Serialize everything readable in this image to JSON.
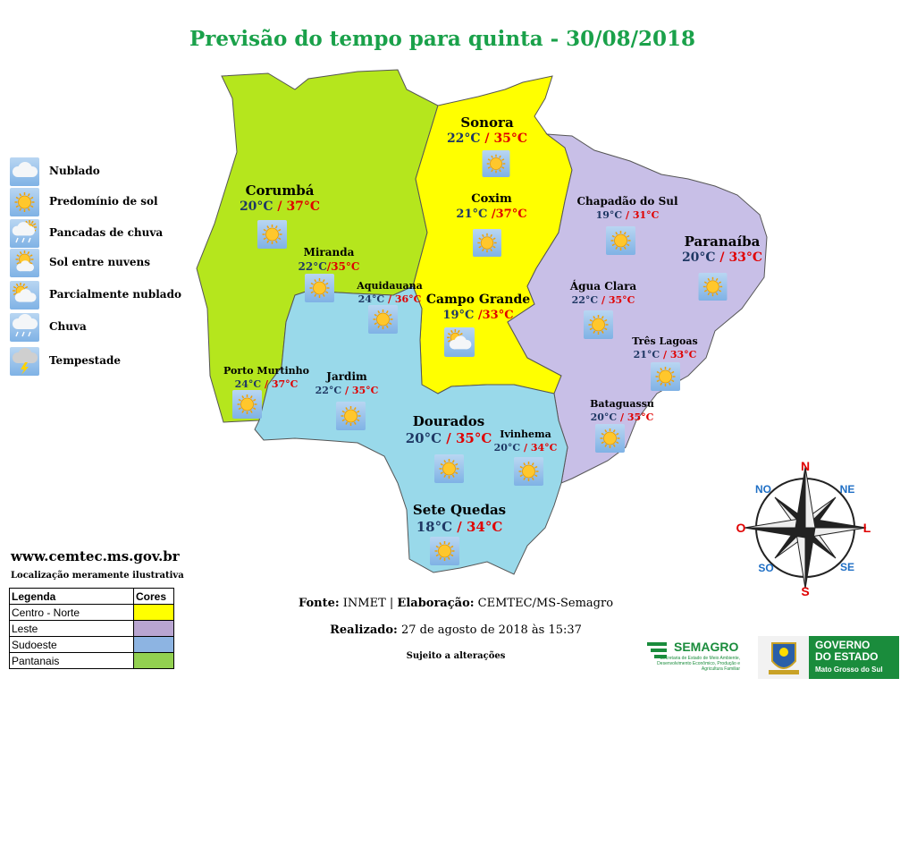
{
  "title": "Previsão do tempo para quinta - 30/08/2018",
  "icon_legend": [
    {
      "icon": "cloud-icon",
      "label": "Nublado"
    },
    {
      "icon": "sun-icon",
      "label": "Predomínio de sol"
    },
    {
      "icon": "showers-icon",
      "label": "Pancadas de chuva"
    },
    {
      "icon": "sun-cloud-icon",
      "label": "Sol entre nuvens"
    },
    {
      "icon": "partly-cloudy-icon",
      "label": "Parcialmente nublado"
    },
    {
      "icon": "rain-icon",
      "label": "Chuva"
    },
    {
      "icon": "storm-icon",
      "label": "Tempestade"
    }
  ],
  "regions_legend": {
    "header_left": "Legenda",
    "header_right": "Cores",
    "rows": [
      {
        "label": "Centro - Norte",
        "color": "#ffff00"
      },
      {
        "label": "Leste",
        "color": "#b9a5d1"
      },
      {
        "label": "Sudoeste",
        "color": "#8db4e2"
      },
      {
        "label": "Pantanais",
        "color": "#92d050"
      }
    ]
  },
  "region_colors": {
    "pantanais": "#b5e61d",
    "centro_norte": "#ffff00",
    "leste": "#c8bfe7",
    "sudoeste": "#99d9ea"
  },
  "cities": [
    {
      "name": "Sonora",
      "min": "22°C",
      "max": "35°C",
      "sep": " / ",
      "icon": "sun-icon"
    },
    {
      "name": "Corumbá",
      "min": "20°C",
      "max": "37°C",
      "sep": " / ",
      "icon": "sun-icon"
    },
    {
      "name": "Coxim",
      "min": "21°C",
      "max": "37°C",
      "sep": " /",
      "icon": "sun-icon"
    },
    {
      "name": "Chapadão do Sul",
      "min": "19°C",
      "max": "31°C",
      "sep": " / ",
      "icon": "sun-icon"
    },
    {
      "name": "Paranaíba",
      "min": "20°C",
      "max": "33°C",
      "sep": " / ",
      "icon": "sun-icon"
    },
    {
      "name": "Miranda",
      "min": "22°C",
      "max": "35°C",
      "sep": "/",
      "icon": "sun-icon"
    },
    {
      "name": "Aquidauana",
      "min": "24°C",
      "max": "36°C",
      "sep": " / ",
      "icon": "sun-icon"
    },
    {
      "name": "Campo Grande",
      "min": "19°C",
      "max": "33°C",
      "sep": " /",
      "icon": "partly-cloudy-icon"
    },
    {
      "name": "Água Clara",
      "min": "22°C",
      "max": "35°C",
      "sep": " / ",
      "icon": "sun-icon"
    },
    {
      "name": "Três Lagoas",
      "min": "21°C",
      "max": "33°C",
      "sep": " / ",
      "icon": "sun-icon"
    },
    {
      "name": "Porto Murtinho",
      "min": "24°C",
      "max": "37°C",
      "sep": " / ",
      "icon": "sun-icon"
    },
    {
      "name": "Jardim",
      "min": "22°C",
      "max": "35°C",
      "sep": " / ",
      "icon": "sun-icon"
    },
    {
      "name": "Bataguassu",
      "min": "20°C",
      "max": "35°C",
      "sep": " / ",
      "icon": "sun-icon"
    },
    {
      "name": "Dourados",
      "min": "20°C",
      "max": "35°C",
      "sep": " / ",
      "icon": "sun-icon"
    },
    {
      "name": "Ivinhema",
      "min": "20°C",
      "max": "34°C",
      "sep": " / ",
      "icon": "sun-icon"
    },
    {
      "name": "Sete Quedas",
      "min": "18°C",
      "max": "34°C",
      "sep": " / ",
      "icon": "sun-icon"
    }
  ],
  "compass": {
    "n": "N",
    "ne": "NE",
    "l": "L",
    "se": "SE",
    "s": "S",
    "so": "SO",
    "o": "O",
    "no": "NO"
  },
  "website": "www.cemtec.ms.gov.br",
  "location_note": "Localização meramente ilustrativa",
  "footer": {
    "fonte_label": "Fonte:",
    "fonte_value": " INMET | ",
    "elab_label": "Elaboração:",
    "elab_value": " CEMTEC/MS-Semagro",
    "realizado_label": "Realizado:",
    "realizado_value": " 27 de agosto de 2018 às 15:37",
    "note": "Sujeito a alterações"
  },
  "logos": {
    "semagro_name": "SEMAGRO",
    "semagro_sub": "Secretaria de Estado de Meio Ambiente, Desenvolvimento Econômico, Produção e Agricultura Familiar",
    "gov_l1": "GOVERNO",
    "gov_l2": "DO ESTADO",
    "gov_l3": "Mato Grosso do Sul"
  }
}
